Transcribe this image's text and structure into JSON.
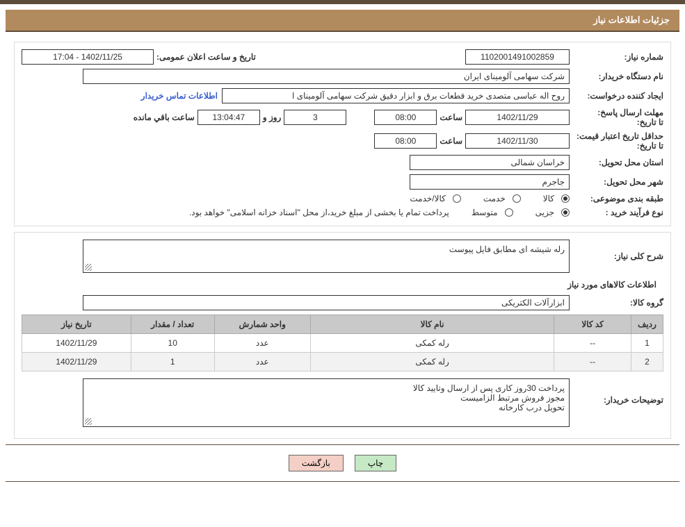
{
  "header": {
    "title": "جزئیات اطلاعات نیاز"
  },
  "colors": {
    "topbar": "#5e4d3c",
    "titlebar": "#b18a5e",
    "titlebar_text": "#ffffff",
    "border": "#dcdcdc",
    "table_header": "#c9c9c9",
    "btn_print": "#c5e8c5",
    "btn_back": "#f4cfc5",
    "link": "#3a5fcd"
  },
  "labels": {
    "need_no": "شماره نیاز:",
    "announce_datetime": "تاریخ و ساعت اعلان عمومی:",
    "buyer_org": "نام دستگاه خریدار:",
    "requester": "ایجاد کننده درخواست:",
    "contact_link": "اطلاعات تماس خریدار",
    "reply_deadline": "مهلت ارسال پاسخ:",
    "to_date": "تا تاریخ:",
    "hour": "ساعت",
    "days": "روز و",
    "remaining": "ساعت باقي مانده",
    "min_valid_date": "حداقل تاریخ اعتبار قیمت:",
    "province": "استان محل تحویل:",
    "city": "شهر محل تحویل:",
    "subject_class": "طبقه بندی موضوعی:",
    "radio_goods": "کالا",
    "radio_service": "خدمت",
    "radio_goods_service": "کالا/خدمت",
    "purchase_type": "نوع فرآیند خرید :",
    "radio_partial": "جزیی",
    "radio_medium": "متوسط",
    "payment_note": "پرداخت تمام یا بخشی از مبلغ خرید،از محل \"اسناد خزانه اسلامی\" خواهد بود.",
    "general_desc": "شرح کلی نیاز:",
    "goods_info": "اطلاعات کالاهای مورد نیاز",
    "goods_group": "گروه کالا:",
    "buyer_notes": "توضیحات خریدار:",
    "btn_print": "چاپ",
    "btn_back": "بازگشت"
  },
  "values": {
    "need_no": "1102001491002859",
    "announce_datetime": "1402/11/25 - 17:04",
    "buyer_org": "شرکت سهامی آلومینای ایران",
    "requester": "روح اله عباسی متصدی خرید قطعات برق و ابزار دقیق شرکت سهامی آلومینای ا",
    "reply_to_date": "1402/11/29",
    "reply_time": "08:00",
    "days_remain": "3",
    "hours_remain": "13:04:47",
    "min_valid_to_date": "1402/11/30",
    "min_valid_time": "08:00",
    "province": "خراسان شمالی",
    "city": "جاجرم",
    "general_desc_text": "رله شیشه ای مطابق فایل پیوست",
    "goods_group": "ابزارآلات الکتریکی",
    "buyer_notes_lines": [
      "پرداخت 30روز کاری پس از ارسال وتایید کالا",
      "مجوز فروش مرتبط الزامیست",
      "تحویل درب کارخانه"
    ]
  },
  "table": {
    "columns": [
      "ردیف",
      "کد کالا",
      "نام کالا",
      "واحد شمارش",
      "تعداد / مقدار",
      "تاریخ نیاز"
    ],
    "col_widths": [
      "5%",
      "12%",
      "38%",
      "15%",
      "13%",
      "17%"
    ],
    "rows": [
      [
        "1",
        "--",
        "رله کمکی",
        "عدد",
        "10",
        "1402/11/29"
      ],
      [
        "2",
        "--",
        "رله کمکی",
        "عدد",
        "1",
        "1402/11/29"
      ]
    ]
  },
  "radios": {
    "subject_selected": "goods",
    "purchase_selected": "partial"
  }
}
